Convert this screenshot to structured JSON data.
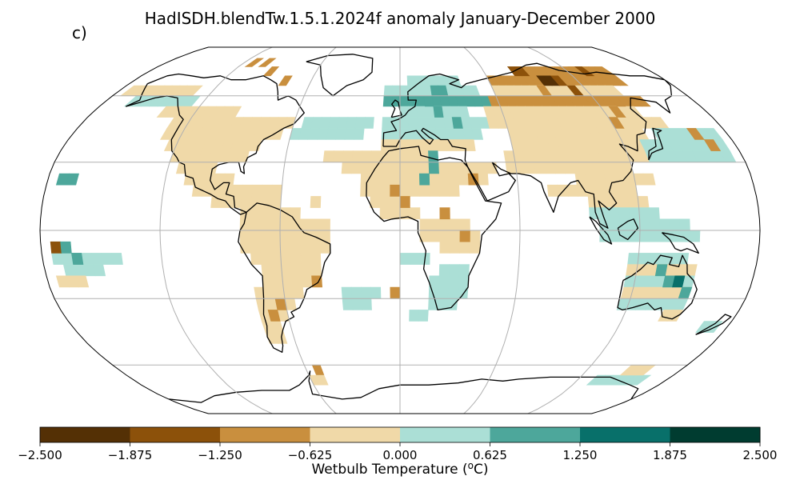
{
  "title": "HadISDH.blendTw.1.5.1.2024f anomaly January-December 2000",
  "panel_label": "c)",
  "colorbar": {
    "label_main": "Wetbulb Temperature (",
    "label_sup": "o",
    "label_end": "C)",
    "ticks": [
      "−2.500",
      "−1.875",
      "−1.250",
      "−0.625",
      "0.000",
      "0.625",
      "1.250",
      "1.875",
      "2.500"
    ],
    "colors": [
      "#543005",
      "#8c510a",
      "#c98f3e",
      "#f0d9a8",
      "#abdfd6",
      "#4da79b",
      "#08706a",
      "#003c30"
    ]
  },
  "map": {
    "projection": "Robinson",
    "grid_box_degrees": 5,
    "land_color": "#ffffff",
    "coast_color": "#000000",
    "gridline_color": "#b0b0b0"
  }
}
